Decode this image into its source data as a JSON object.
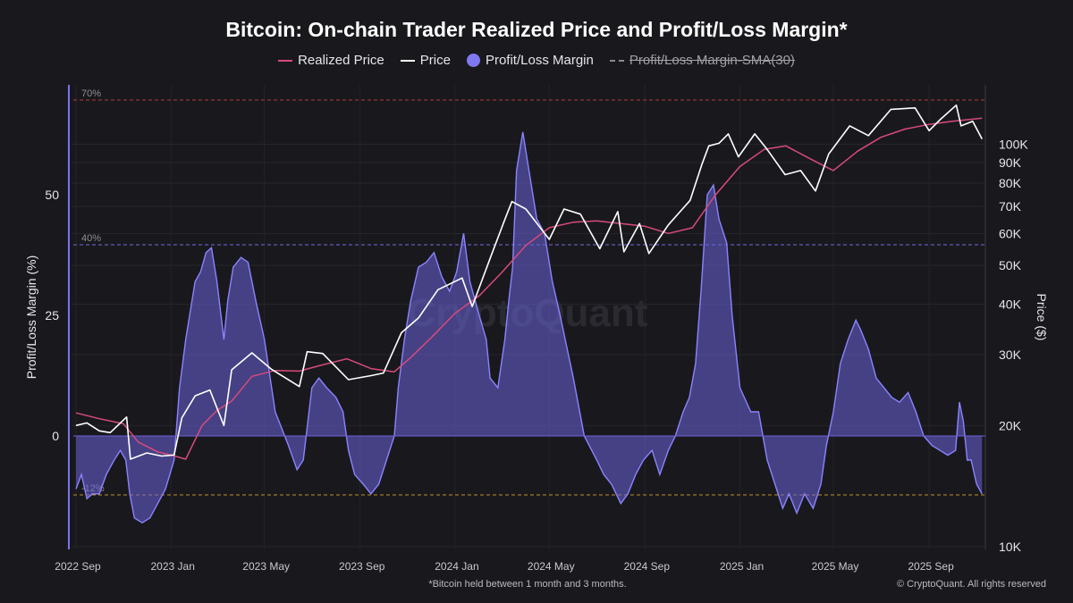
{
  "chart_data": {
    "type": "line",
    "title": "Bitcoin: On-chain Trader Realized Price and Profit/Loss Margin*",
    "legend": {
      "placement": "top-center",
      "items": [
        {
          "label": "Realized Price",
          "color": "#d94a7a",
          "style": "line"
        },
        {
          "label": "Price",
          "color": "#ffffff",
          "style": "line"
        },
        {
          "label": "Profit/Loss Margin",
          "color": "#8078f0",
          "style": "dot"
        },
        {
          "label": "Profit/Loss Margin-SMA(30)",
          "color": "#8a8a90",
          "style": "dashed",
          "hidden": true
        }
      ]
    },
    "ylabel_left": "Profit/Loss Margin (%)",
    "ylabel_right": "Price ($)",
    "y_left_ticks": [
      "0",
      "25",
      "50"
    ],
    "y_left_range": [
      -16,
      63
    ],
    "y_right_scale": "log",
    "y_right_range": [
      10000,
      130000
    ],
    "y_right_ticks": [
      {
        "label": "10K",
        "value": 10000
      },
      {
        "label": "20K",
        "value": 20000
      },
      {
        "label": "30K",
        "value": 30000
      },
      {
        "label": "40K",
        "value": 40000
      },
      {
        "label": "50K",
        "value": 50000
      },
      {
        "label": "60K",
        "value": 60000
      },
      {
        "label": "70K",
        "value": 70000
      },
      {
        "label": "80K",
        "value": 80000
      },
      {
        "label": "90K",
        "value": 90000
      },
      {
        "label": "100K",
        "value": 100000
      }
    ],
    "x_ticks": [
      {
        "label": "2022 Sep",
        "date": "2022-09-01"
      },
      {
        "label": "2023 Jan",
        "date": "2023-01-01"
      },
      {
        "label": "2023 May",
        "date": "2023-05-01"
      },
      {
        "label": "2023 Sep",
        "date": "2023-09-01"
      },
      {
        "label": "2024 Jan",
        "date": "2024-01-01"
      },
      {
        "label": "2024 May",
        "date": "2024-05-01"
      },
      {
        "label": "2024 Sep",
        "date": "2024-09-01"
      },
      {
        "label": "2025 Jan",
        "date": "2025-01-01"
      },
      {
        "label": "2025 May",
        "date": "2025-05-01"
      },
      {
        "label": "2025 Sep",
        "date": "2025-09-01"
      }
    ],
    "x_range": [
      "2022-09-01",
      "2025-11-10"
    ],
    "grid": true,
    "reference_lines": [
      {
        "label": "70%",
        "value": 70,
        "color": "#b03a3a"
      },
      {
        "label": "40%",
        "value": 40,
        "color": "#6f6ae0"
      },
      {
        "label": "-12%",
        "value": -12,
        "color": "#c0902a"
      }
    ],
    "series": [
      {
        "name": "Profit/Loss Margin",
        "axis": "left",
        "type": "area",
        "color": "#8078f0",
        "points": [
          [
            "2022-09-01",
            -11
          ],
          [
            "2022-09-08",
            -8
          ],
          [
            "2022-09-15",
            -13
          ],
          [
            "2022-09-22",
            -12
          ],
          [
            "2022-10-01",
            -12
          ],
          [
            "2022-10-10",
            -8
          ],
          [
            "2022-10-20",
            -5
          ],
          [
            "2022-10-28",
            -3
          ],
          [
            "2022-11-04",
            -5
          ],
          [
            "2022-11-09",
            -12
          ],
          [
            "2022-11-15",
            -17
          ],
          [
            "2022-11-25",
            -18
          ],
          [
            "2022-12-05",
            -17
          ],
          [
            "2022-12-15",
            -14
          ],
          [
            "2022-12-25",
            -11
          ],
          [
            "2023-01-05",
            -5
          ],
          [
            "2023-01-12",
            10
          ],
          [
            "2023-01-20",
            20
          ],
          [
            "2023-02-01",
            32
          ],
          [
            "2023-02-08",
            34
          ],
          [
            "2023-02-15",
            38
          ],
          [
            "2023-02-22",
            39
          ],
          [
            "2023-03-01",
            32
          ],
          [
            "2023-03-10",
            20
          ],
          [
            "2023-03-15",
            28
          ],
          [
            "2023-03-22",
            35
          ],
          [
            "2023-04-01",
            37
          ],
          [
            "2023-04-10",
            36
          ],
          [
            "2023-04-20",
            28
          ],
          [
            "2023-05-01",
            20
          ],
          [
            "2023-05-15",
            5
          ],
          [
            "2023-06-01",
            -2
          ],
          [
            "2023-06-12",
            -7
          ],
          [
            "2023-06-20",
            -5
          ],
          [
            "2023-07-01",
            10
          ],
          [
            "2023-07-10",
            12
          ],
          [
            "2023-07-20",
            10
          ],
          [
            "2023-08-01",
            8
          ],
          [
            "2023-08-10",
            5
          ],
          [
            "2023-08-17",
            -3
          ],
          [
            "2023-08-25",
            -8
          ],
          [
            "2023-09-05",
            -10
          ],
          [
            "2023-09-15",
            -12
          ],
          [
            "2023-09-25",
            -10
          ],
          [
            "2023-10-05",
            -5
          ],
          [
            "2023-10-15",
            0
          ],
          [
            "2023-10-20",
            10
          ],
          [
            "2023-10-28",
            20
          ],
          [
            "2023-11-05",
            28
          ],
          [
            "2023-11-15",
            35
          ],
          [
            "2023-11-25",
            36
          ],
          [
            "2023-12-05",
            38
          ],
          [
            "2023-12-15",
            33
          ],
          [
            "2023-12-25",
            30
          ],
          [
            "2024-01-03",
            34
          ],
          [
            "2024-01-12",
            42
          ],
          [
            "2024-01-20",
            32
          ],
          [
            "2024-02-01",
            25
          ],
          [
            "2024-02-10",
            20
          ],
          [
            "2024-02-15",
            12
          ],
          [
            "2024-02-25",
            10
          ],
          [
            "2024-03-05",
            20
          ],
          [
            "2024-03-10",
            28
          ],
          [
            "2024-03-15",
            35
          ],
          [
            "2024-03-20",
            55
          ],
          [
            "2024-03-28",
            63
          ],
          [
            "2024-04-05",
            55
          ],
          [
            "2024-04-15",
            45
          ],
          [
            "2024-04-25",
            42
          ],
          [
            "2024-05-05",
            32
          ],
          [
            "2024-05-15",
            25
          ],
          [
            "2024-06-01",
            12
          ],
          [
            "2024-06-15",
            0
          ],
          [
            "2024-07-01",
            -5
          ],
          [
            "2024-07-10",
            -8
          ],
          [
            "2024-07-20",
            -10
          ],
          [
            "2024-08-01",
            -14
          ],
          [
            "2024-08-10",
            -12
          ],
          [
            "2024-08-20",
            -8
          ],
          [
            "2024-08-30",
            -5
          ],
          [
            "2024-09-10",
            -3
          ],
          [
            "2024-09-20",
            -8
          ],
          [
            "2024-10-01",
            -3
          ],
          [
            "2024-10-10",
            0
          ],
          [
            "2024-10-20",
            5
          ],
          [
            "2024-10-28",
            8
          ],
          [
            "2024-11-05",
            15
          ],
          [
            "2024-11-12",
            30
          ],
          [
            "2024-11-20",
            50
          ],
          [
            "2024-11-28",
            52
          ],
          [
            "2024-12-05",
            45
          ],
          [
            "2024-12-15",
            40
          ],
          [
            "2024-12-22",
            25
          ],
          [
            "2025-01-01",
            10
          ],
          [
            "2025-01-15",
            5
          ],
          [
            "2025-01-25",
            5
          ],
          [
            "2025-02-05",
            -5
          ],
          [
            "2025-02-15",
            -10
          ],
          [
            "2025-02-25",
            -15
          ],
          [
            "2025-03-05",
            -12
          ],
          [
            "2025-03-15",
            -16
          ],
          [
            "2025-03-25",
            -12
          ],
          [
            "2025-04-05",
            -15
          ],
          [
            "2025-04-15",
            -10
          ],
          [
            "2025-04-22",
            -2
          ],
          [
            "2025-05-01",
            5
          ],
          [
            "2025-05-10",
            15
          ],
          [
            "2025-05-20",
            20
          ],
          [
            "2025-05-30",
            24
          ],
          [
            "2025-06-05",
            22
          ],
          [
            "2025-06-15",
            18
          ],
          [
            "2025-06-25",
            12
          ],
          [
            "2025-07-05",
            10
          ],
          [
            "2025-07-15",
            8
          ],
          [
            "2025-07-25",
            7
          ],
          [
            "2025-08-05",
            9
          ],
          [
            "2025-08-15",
            5
          ],
          [
            "2025-08-25",
            0
          ],
          [
            "2025-09-05",
            -2
          ],
          [
            "2025-09-15",
            -3
          ],
          [
            "2025-09-25",
            -4
          ],
          [
            "2025-10-05",
            -3
          ],
          [
            "2025-10-10",
            7
          ],
          [
            "2025-10-15",
            3
          ],
          [
            "2025-10-20",
            -5
          ],
          [
            "2025-10-25",
            -5
          ],
          [
            "2025-11-01",
            -10
          ],
          [
            "2025-11-08",
            -12
          ]
        ]
      },
      {
        "name": "Realized Price",
        "axis": "right",
        "color": "#d94a7a",
        "points": [
          [
            "2022-09-01",
            21500
          ],
          [
            "2022-10-01",
            20800
          ],
          [
            "2022-11-01",
            20200
          ],
          [
            "2022-11-20",
            18200
          ],
          [
            "2022-12-15",
            17200
          ],
          [
            "2023-01-01",
            16900
          ],
          [
            "2023-01-20",
            16500
          ],
          [
            "2023-02-10",
            20000
          ],
          [
            "2023-03-01",
            21800
          ],
          [
            "2023-03-20",
            23000
          ],
          [
            "2023-04-15",
            26500
          ],
          [
            "2023-05-15",
            27400
          ],
          [
            "2023-06-15",
            27300
          ],
          [
            "2023-07-15",
            28300
          ],
          [
            "2023-08-15",
            29300
          ],
          [
            "2023-09-15",
            27700
          ],
          [
            "2023-10-15",
            27200
          ],
          [
            "2023-11-05",
            29500
          ],
          [
            "2023-12-01",
            33000
          ],
          [
            "2024-01-01",
            38000
          ],
          [
            "2024-02-01",
            42000
          ],
          [
            "2024-03-01",
            48000
          ],
          [
            "2024-04-01",
            56000
          ],
          [
            "2024-05-01",
            62000
          ],
          [
            "2024-06-01",
            64000
          ],
          [
            "2024-07-01",
            64500
          ],
          [
            "2024-08-01",
            63500
          ],
          [
            "2024-09-01",
            62500
          ],
          [
            "2024-10-01",
            60000
          ],
          [
            "2024-11-01",
            62000
          ],
          [
            "2024-12-01",
            75000
          ],
          [
            "2025-01-01",
            88000
          ],
          [
            "2025-02-01",
            97000
          ],
          [
            "2025-03-01",
            99000
          ],
          [
            "2025-04-01",
            92000
          ],
          [
            "2025-05-01",
            86000
          ],
          [
            "2025-06-01",
            96000
          ],
          [
            "2025-07-01",
            104000
          ],
          [
            "2025-08-01",
            109000
          ],
          [
            "2025-09-01",
            112000
          ],
          [
            "2025-10-01",
            114000
          ],
          [
            "2025-11-08",
            116000
          ]
        ]
      },
      {
        "name": "Price",
        "axis": "right",
        "color": "#ffffff",
        "points": [
          [
            "2022-09-01",
            20000
          ],
          [
            "2022-09-15",
            20300
          ],
          [
            "2022-10-01",
            19400
          ],
          [
            "2022-10-15",
            19200
          ],
          [
            "2022-11-05",
            21000
          ],
          [
            "2022-11-10",
            16500
          ],
          [
            "2022-12-01",
            17100
          ],
          [
            "2022-12-20",
            16800
          ],
          [
            "2023-01-05",
            16900
          ],
          [
            "2023-01-15",
            20900
          ],
          [
            "2023-02-01",
            23700
          ],
          [
            "2023-02-20",
            24500
          ],
          [
            "2023-03-10",
            20000
          ],
          [
            "2023-03-20",
            27500
          ],
          [
            "2023-04-15",
            30300
          ],
          [
            "2023-05-10",
            27600
          ],
          [
            "2023-06-15",
            25000
          ],
          [
            "2023-06-25",
            30500
          ],
          [
            "2023-07-15",
            30200
          ],
          [
            "2023-08-17",
            26000
          ],
          [
            "2023-09-15",
            26600
          ],
          [
            "2023-10-01",
            27000
          ],
          [
            "2023-10-24",
            34000
          ],
          [
            "2023-11-15",
            37000
          ],
          [
            "2023-12-10",
            43500
          ],
          [
            "2024-01-10",
            46500
          ],
          [
            "2024-01-23",
            39500
          ],
          [
            "2024-02-15",
            52000
          ],
          [
            "2024-03-05",
            65000
          ],
          [
            "2024-03-14",
            72000
          ],
          [
            "2024-04-01",
            69000
          ],
          [
            "2024-05-01",
            58000
          ],
          [
            "2024-05-20",
            69000
          ],
          [
            "2024-06-10",
            67000
          ],
          [
            "2024-07-05",
            55000
          ],
          [
            "2024-07-28",
            68000
          ],
          [
            "2024-08-05",
            54000
          ],
          [
            "2024-08-25",
            63500
          ],
          [
            "2024-09-06",
            53500
          ],
          [
            "2024-10-01",
            63000
          ],
          [
            "2024-10-29",
            72500
          ],
          [
            "2024-11-13",
            89000
          ],
          [
            "2024-11-22",
            99000
          ],
          [
            "2024-12-05",
            100500
          ],
          [
            "2024-12-17",
            106000
          ],
          [
            "2024-12-30",
            93000
          ],
          [
            "2025-01-20",
            106000
          ],
          [
            "2025-02-05",
            97000
          ],
          [
            "2025-02-28",
            84000
          ],
          [
            "2025-03-20",
            86000
          ],
          [
            "2025-04-08",
            76500
          ],
          [
            "2025-04-25",
            94500
          ],
          [
            "2025-05-22",
            111000
          ],
          [
            "2025-06-15",
            105000
          ],
          [
            "2025-07-14",
            122000
          ],
          [
            "2025-08-14",
            123000
          ],
          [
            "2025-09-01",
            108000
          ],
          [
            "2025-09-15",
            115000
          ],
          [
            "2025-10-06",
            125000
          ],
          [
            "2025-10-12",
            111000
          ],
          [
            "2025-10-27",
            114000
          ],
          [
            "2025-11-08",
            103000
          ]
        ]
      }
    ],
    "watermark": "CryptoQuant"
  },
  "footer": {
    "note": "*Bitcoin held between 1 month and 3 months.",
    "copyright": "© CryptoQuant. All rights reserved"
  }
}
